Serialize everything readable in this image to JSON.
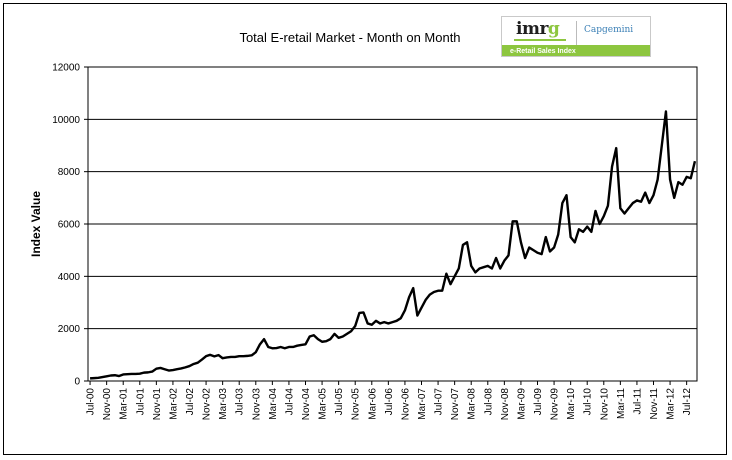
{
  "chart_data": {
    "type": "line",
    "title": "Total E-retail Market - Month on Month",
    "xlabel": "",
    "ylabel": "Index Value",
    "ylim": [
      0,
      12000
    ],
    "yticks": [
      0,
      2000,
      4000,
      6000,
      8000,
      10000,
      12000
    ],
    "grid": true,
    "legend": "none",
    "x_tick_labels": [
      "Jul-00",
      "Nov-00",
      "Mar-01",
      "Jul-01",
      "Nov-01",
      "Mar-02",
      "Jul-02",
      "Nov-02",
      "Mar-03",
      "Jul-03",
      "Nov-03",
      "Mar-04",
      "Jul-04",
      "Nov-04",
      "Mar-05",
      "Jul-05",
      "Nov-05",
      "Mar-06",
      "Jul-06",
      "Nov-06",
      "Mar-07",
      "Jul-07",
      "Nov-07",
      "Mar-08",
      "Jul-08",
      "Nov-08",
      "Mar-09",
      "Jul-09",
      "Nov-09",
      "Mar-10",
      "Jul-10",
      "Nov-10",
      "Mar-11",
      "Jul-11",
      "Nov-11",
      "Mar-12",
      "Jul-12"
    ],
    "series": [
      {
        "color": "#000000",
        "values": [
          100,
          110,
          120,
          150,
          180,
          210,
          220,
          190,
          250,
          260,
          270,
          270,
          280,
          320,
          330,
          360,
          470,
          500,
          450,
          400,
          420,
          450,
          480,
          520,
          570,
          650,
          700,
          820,
          950,
          1000,
          940,
          990,
          870,
          900,
          920,
          920,
          950,
          950,
          960,
          980,
          1100,
          1400,
          1600,
          1300,
          1250,
          1260,
          1300,
          1250,
          1300,
          1300,
          1350,
          1380,
          1400,
          1700,
          1750,
          1600,
          1500,
          1520,
          1600,
          1800,
          1650,
          1700,
          1800,
          1900,
          2100,
          2600,
          2620,
          2200,
          2150,
          2300,
          2200,
          2250,
          2200,
          2250,
          2300,
          2400,
          2700,
          3200,
          3550,
          2500,
          2800,
          3100,
          3300,
          3400,
          3450,
          3450,
          4100,
          3700,
          4000,
          4300,
          5200,
          5300,
          4400,
          4150,
          4300,
          4350,
          4400,
          4300,
          4700,
          4300,
          4600,
          4800,
          6100,
          6100,
          5300,
          4700,
          5100,
          5000,
          4900,
          4850,
          5500,
          4950,
          5100,
          5600,
          6800,
          7100,
          5500,
          5300,
          5800,
          5700,
          5900,
          5700,
          6500,
          6000,
          6300,
          6700,
          8200,
          8900,
          6600,
          6400,
          6600,
          6800,
          6900,
          6850,
          7200,
          6800,
          7100,
          7700,
          9000,
          10300,
          7700,
          7000,
          7600,
          7500,
          7800,
          7750,
          8400
        ]
      }
    ]
  },
  "logo": {
    "brand": "imrg",
    "partner": "Capgemini",
    "bar_text": "e-Retail Sales Index",
    "accent": "#8dc63f"
  }
}
